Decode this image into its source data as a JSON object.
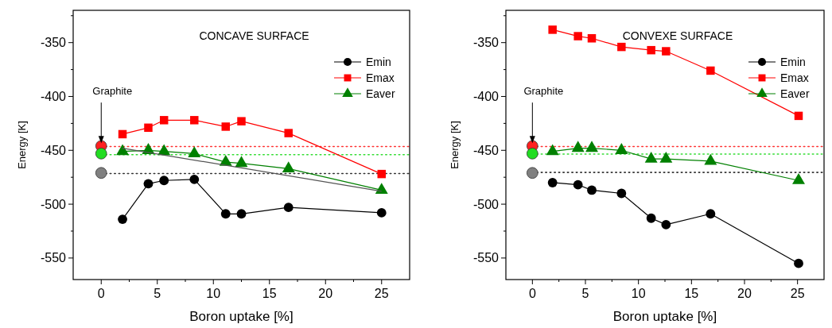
{
  "chart_data": [
    {
      "type": "line",
      "title": "CONCAVE SURFACE",
      "xlabel": "Boron uptake [%]",
      "ylabel": "Energy [K]",
      "xlim": [
        -2.5,
        27.5
      ],
      "ylim": [
        -570,
        -320
      ],
      "xticks": [
        0,
        {
          "value": 2.5,
          "label": null
        },
        5,
        {
          "value": 7.5,
          "label": null
        },
        10,
        {
          "value": 12.5,
          "label": null
        },
        15,
        {
          "value": 17.5,
          "label": null
        },
        20,
        {
          "value": 22.5,
          "label": null
        },
        25
      ],
      "yticks": [
        -550,
        {
          "value": -525,
          "label": null
        },
        -500,
        {
          "value": -475,
          "label": null
        },
        -450,
        {
          "value": -425,
          "label": null
        },
        -400,
        {
          "value": -375,
          "label": null
        },
        -350,
        {
          "value": -325,
          "label": null
        }
      ],
      "grid": false,
      "legend": "top right",
      "x": [
        1.9,
        4.2,
        5.6,
        8.3,
        11.1,
        12.5,
        16.7,
        25
      ],
      "series": [
        {
          "name": "Emin",
          "color": "#000000",
          "marker": "circle",
          "values": [
            -514,
            -481,
            -478,
            -477,
            -509,
            -509,
            -503,
            -508
          ]
        },
        {
          "name": "Emax",
          "color": "#ff0000",
          "marker": "square",
          "values": [
            -435,
            -429,
            -422,
            -422,
            -428,
            -423,
            -434,
            -472
          ]
        },
        {
          "name": "Eaver",
          "color": "#008000",
          "marker": "triangle",
          "values": [
            -451,
            -450,
            -451,
            -453,
            -461,
            -462,
            -467,
            -487
          ]
        },
        {
          "type": "line",
          "color": "#555555",
          "marker": "none",
          "x": [
            1.9,
            25
          ],
          "values": [
            -448,
            -488
          ]
        },
        {
          "type": "scatter",
          "marker": "circle",
          "x": [
            0,
            0,
            0
          ],
          "values": [
            -446,
            -453,
            -471
          ],
          "colors": [
            "#ff2020",
            "#22dd22",
            "#808080"
          ]
        }
      ],
      "ref_lines": [
        {
          "axis": "y",
          "value": -446.5,
          "label": null,
          "color": "#ff3030",
          "line_style": "dotted"
        },
        {
          "axis": "y",
          "value": -454,
          "label": null,
          "color": "#33dd33",
          "line_style": "dotted"
        },
        {
          "axis": "y",
          "value": -471.5,
          "label": null,
          "color": "#333333",
          "line_style": "dotted"
        }
      ],
      "annotations": [
        {
          "text": "Graphite",
          "x": 0,
          "y": -444
        }
      ]
    },
    {
      "type": "line",
      "title": "CONVEXE SURFACE",
      "xlabel": "Boron uptake [%]",
      "ylabel": "Energy [K]",
      "xlim": [
        -2.5,
        27.5
      ],
      "ylim": [
        -570,
        -320
      ],
      "xticks": [
        0,
        {
          "value": 2.5,
          "label": null
        },
        5,
        {
          "value": 7.5,
          "label": null
        },
        10,
        {
          "value": 12.5,
          "label": null
        },
        15,
        {
          "value": 17.5,
          "label": null
        },
        20,
        {
          "value": 22.5,
          "label": null
        },
        25
      ],
      "yticks": [
        -550,
        {
          "value": -525,
          "label": null
        },
        -500,
        {
          "value": -475,
          "label": null
        },
        -450,
        {
          "value": -425,
          "label": null
        },
        -400,
        {
          "value": -375,
          "label": null
        },
        -350,
        {
          "value": -325,
          "label": null
        }
      ],
      "grid": false,
      "legend": "top right",
      "x": [
        1.9,
        4.3,
        5.6,
        8.4,
        11.2,
        12.6,
        16.8,
        25.1
      ],
      "series": [
        {
          "name": "Emin",
          "color": "#000000",
          "marker": "circle",
          "values": [
            -480,
            -482,
            -487,
            -490,
            -513,
            -519,
            -509,
            -555
          ]
        },
        {
          "name": "Emax",
          "color": "#ff0000",
          "marker": "square",
          "values": [
            -338,
            -344,
            -346,
            -354,
            -357,
            -358,
            -376,
            -418
          ]
        },
        {
          "name": "Eaver",
          "color": "#008000",
          "marker": "triangle",
          "values": [
            -451,
            -448,
            -448,
            -450,
            -458,
            -458,
            -460,
            -478
          ]
        },
        {
          "type": "scatter",
          "marker": "circle",
          "x": [
            0,
            0,
            0
          ],
          "values": [
            -446,
            -453,
            -471
          ],
          "colors": [
            "#ff2020",
            "#22dd22",
            "#808080"
          ]
        }
      ],
      "ref_lines": [
        {
          "axis": "y",
          "value": -446.5,
          "label": null,
          "color": "#ff3030",
          "line_style": "dotted"
        },
        {
          "axis": "y",
          "value": -453.5,
          "label": null,
          "color": "#33dd33",
          "line_style": "dotted"
        },
        {
          "axis": "y",
          "value": -470.5,
          "label": null,
          "color": "#333333",
          "line_style": "dotted"
        }
      ],
      "annotations": [
        {
          "text": "Graphite",
          "x": 0,
          "y": -444
        }
      ]
    }
  ]
}
